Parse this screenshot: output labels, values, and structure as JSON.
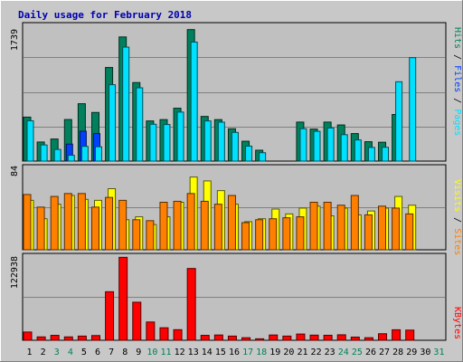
{
  "title": "Daily usage for February 2018",
  "colors": {
    "background": "#c8c8c8",
    "panel": "#c0c0c0",
    "hits": "#00805c",
    "files": "#0040ff",
    "pages": "#00e0ff",
    "visits": "#ffff00",
    "sites": "#ff8000",
    "kbytes": "#ff0000",
    "weekend_label": "#00805c",
    "weekday_label": "#000000",
    "title": "#0000b0"
  },
  "legend": {
    "top": {
      "pages": "Pages",
      "sep1": " / ",
      "files": "Files",
      "sep2": " / ",
      "hits": "Hits"
    },
    "middle": {
      "sites": "Sites",
      "sep": " / ",
      "visits": "Visits"
    },
    "bottom": {
      "kbytes": "KBytes"
    }
  },
  "chart_data": {
    "type": "bar",
    "title": "Daily usage for February 2018",
    "categories": [
      "1",
      "2",
      "3",
      "4",
      "5",
      "6",
      "7",
      "8",
      "9",
      "10",
      "11",
      "12",
      "13",
      "14",
      "15",
      "16",
      "17",
      "18",
      "19",
      "20",
      "21",
      "22",
      "23",
      "24",
      "25",
      "26",
      "27",
      "28",
      "29",
      "30",
      "31"
    ],
    "weekend_days": [
      "3",
      "4",
      "10",
      "11",
      "17",
      "18",
      "24",
      "25",
      "31"
    ],
    "panels": [
      {
        "ymax_label": "1739",
        "ymax": 1739,
        "series": [
          {
            "name": "Hits",
            "values": [
              567,
              246,
              285,
              536,
              740,
              627,
              1207,
              1601,
              1013,
              518,
              535,
              682,
              1696,
              576,
              535,
              417,
              256,
              140,
              0,
              0,
              503,
              413,
              503,
              466,
              355,
              250,
              243,
              601,
              0,
              0,
              0
            ]
          },
          {
            "name": "Files",
            "values": [
              0,
              0,
              0,
              219,
              385,
              355,
              0,
              0,
              0,
              0,
              0,
              0,
              0,
              0,
              0,
              0,
              0,
              0,
              0,
              0,
              0,
              0,
              0,
              0,
              0,
              0,
              0,
              0,
              0,
              0,
              0
            ]
          },
          {
            "name": "Pages",
            "values": [
              520,
              208,
              150,
              75,
              190,
              185,
              985,
              1470,
              945,
              475,
              472,
              632,
              1535,
              518,
              502,
              370,
              193,
              108,
              0,
              0,
              418,
              384,
              427,
              341,
              273,
              176,
              178,
              1023,
              1334,
              0,
              0
            ]
          }
        ]
      },
      {
        "ymax_label": "84",
        "ymax": 84,
        "series": [
          {
            "name": "Visits",
            "values": [
              51,
              32,
              47,
              56,
              52,
              51,
              63,
              31,
              34,
              26,
              34,
              49,
              75,
              71,
              61,
              47,
              29,
              32,
              42,
              37,
              43,
              45,
              35,
              43,
              36,
              40,
              43,
              55,
              46,
              0,
              0
            ]
          },
          {
            "name": "Sites",
            "values": [
              57,
              44,
              55,
              58,
              58,
              44,
              54,
              51,
              31,
              30,
              49,
              50,
              58,
              50,
              47,
              56,
              28,
              31,
              32,
              33,
              34,
              49,
              49,
              46,
              56,
              36,
              45,
              43,
              37,
              0,
              0
            ]
          }
        ]
      },
      {
        "ymax_label": "122938",
        "ymax": 122938,
        "series": [
          {
            "name": "KBytes",
            "values": [
              12200,
              5000,
              7300,
              5000,
              6200,
              7000,
              71700,
              122500,
              56200,
              27000,
              18500,
              15600,
              106000,
              7300,
              7800,
              6200,
              3800,
              2200,
              7800,
              6200,
              9200,
              7600,
              7400,
              8100,
              4700,
              3800,
              9700,
              15500,
              15000,
              0,
              0
            ]
          }
        ]
      }
    ]
  }
}
